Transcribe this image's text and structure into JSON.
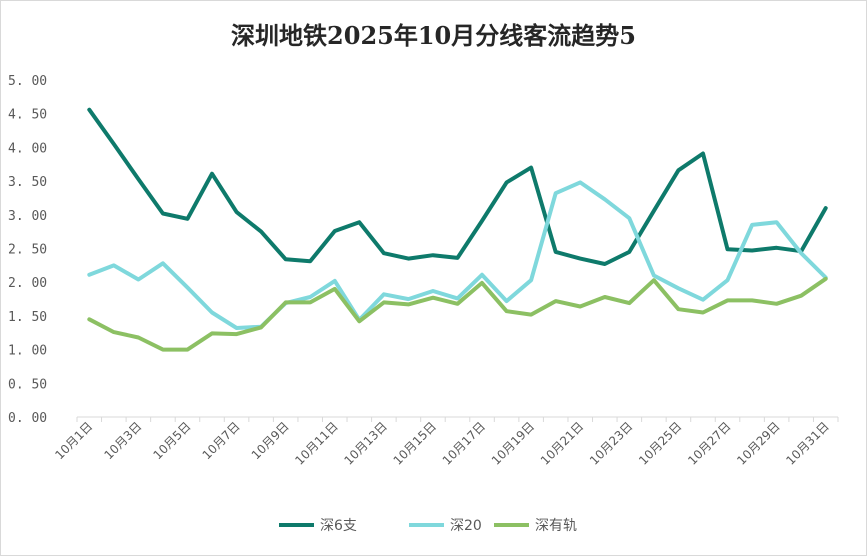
{
  "chart_data": {
    "type": "line",
    "title": "深圳地铁2025年10月分线客流趋势5",
    "ylim": [
      0,
      5
    ],
    "yticks": [
      "0. 00",
      "0. 50",
      "1. 00",
      "1. 50",
      "2. 00",
      "2. 50",
      "3. 00",
      "3. 50",
      "4. 00",
      "4. 50",
      "5. 00"
    ],
    "x": [
      "10月1日",
      "10月2日",
      "10月3日",
      "10月4日",
      "10月5日",
      "10月6日",
      "10月7日",
      "10月8日",
      "10月9日",
      "10月10日",
      "10月11日",
      "10月12日",
      "10月13日",
      "10月14日",
      "10月15日",
      "10月16日",
      "10月17日",
      "10月18日",
      "10月19日",
      "10月20日",
      "10月21日",
      "10月22日",
      "10月23日",
      "10月24日",
      "10月25日",
      "10月26日",
      "10月27日",
      "10月28日",
      "10月29日",
      "10月30日",
      "10月31日"
    ],
    "xtick_labels": [
      "10月1日",
      "10月3日",
      "10月5日",
      "10月7日",
      "10月9日",
      "10月11日",
      "10月13日",
      "10月15日",
      "10月17日",
      "10月19日",
      "10月21日",
      "10月23日",
      "10月25日",
      "10月27日",
      "10月29日",
      "10月31日"
    ],
    "grid": false,
    "legend_position": "bottom",
    "series": [
      {
        "name": "深6支",
        "color": "#0e7a6b",
        "values": [
          4.56,
          4.05,
          3.53,
          3.02,
          2.94,
          3.61,
          3.04,
          2.75,
          2.34,
          2.31,
          2.76,
          2.89,
          2.43,
          2.35,
          2.4,
          2.36,
          2.91,
          3.48,
          3.7,
          2.45,
          2.35,
          2.27,
          2.45,
          3.06,
          3.66,
          3.91,
          2.49,
          2.47,
          2.51,
          2.46,
          3.1
        ]
      },
      {
        "name": "深20",
        "color": "#7fd8dc",
        "values": [
          2.11,
          2.25,
          2.04,
          2.28,
          1.92,
          1.55,
          1.32,
          1.34,
          1.69,
          1.78,
          2.02,
          1.44,
          1.82,
          1.75,
          1.87,
          1.76,
          2.11,
          1.72,
          2.03,
          3.32,
          3.48,
          3.23,
          2.95,
          2.1,
          1.91,
          1.74,
          2.03,
          2.85,
          2.89,
          2.43,
          2.07
        ]
      },
      {
        "name": "深有轨",
        "color": "#8cc063",
        "values": [
          1.45,
          1.26,
          1.18,
          1.0,
          1.0,
          1.24,
          1.23,
          1.33,
          1.7,
          1.7,
          1.9,
          1.42,
          1.7,
          1.67,
          1.77,
          1.68,
          1.99,
          1.57,
          1.52,
          1.72,
          1.64,
          1.78,
          1.69,
          2.03,
          1.6,
          1.55,
          1.73,
          1.73,
          1.68,
          1.8,
          2.05
        ]
      }
    ]
  }
}
